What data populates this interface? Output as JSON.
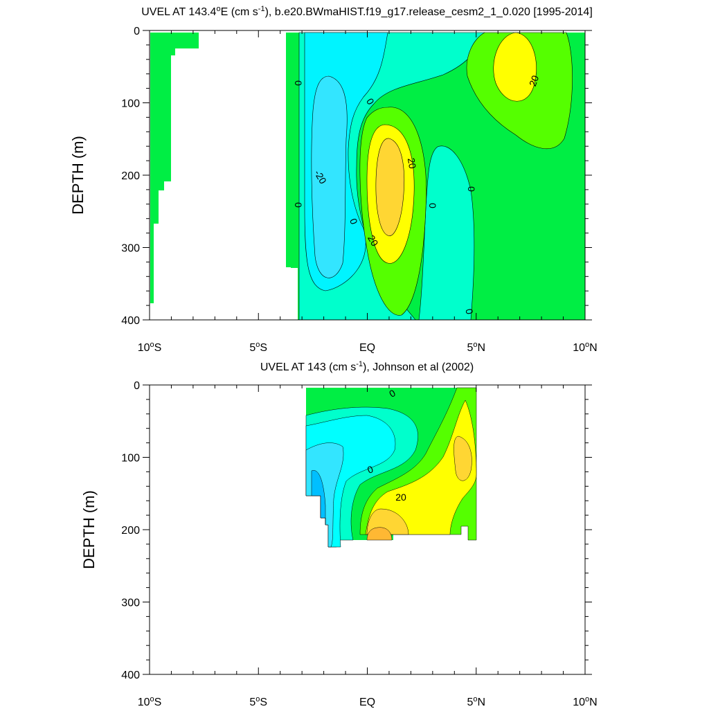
{
  "chart_data": [
    {
      "type": "contour",
      "title_main": "UVEL AT 143.4",
      "title_deg": "o",
      "title_mid": "E (cm s",
      "title_sup": "-1",
      "title_end": "), b.e20.BWmaHIST.f19_g17.release_cesm2_1_0.020 [1995-2014]",
      "ylabel": "DEPTH (m)",
      "xlabel": "",
      "xlim": [
        -10,
        10
      ],
      "ylim": [
        400,
        0
      ],
      "x_ticks": [
        {
          "value": -10,
          "num": "10",
          "deg": "o",
          "hemi": "S"
        },
        {
          "value": -5,
          "num": "5",
          "deg": "o",
          "hemi": "S"
        },
        {
          "value": 0,
          "num": "EQ",
          "deg": "",
          "hemi": ""
        },
        {
          "value": 5,
          "num": "5",
          "deg": "o",
          "hemi": "N"
        },
        {
          "value": 10,
          "num": "10",
          "deg": "o",
          "hemi": "N"
        }
      ],
      "y_ticks": [
        0,
        100,
        200,
        300,
        400
      ],
      "contour_labels": [
        "0",
        "0",
        "0",
        "0",
        "0",
        "0",
        "-20",
        "20",
        "20",
        "20",
        "0"
      ],
      "colors": {
        "neg20": "#33e5ff",
        "neg10": "#00ffff",
        "zero": "#00ffcc",
        "pos10": "#00ff44",
        "pos20": "#55ff00",
        "pos30": "#ffff00",
        "pos40": "#ffd633",
        "pos50": "#ffb833",
        "neg40": "#00bfff",
        "neg50": "#1ea0ff"
      }
    },
    {
      "type": "contour",
      "title_main": "UVEL AT 143 (cm s",
      "title_sup": "-1",
      "title_end": "), Johnson et al (2002)",
      "ylabel": "DEPTH (m)",
      "xlabel": "",
      "xlim": [
        -10,
        10
      ],
      "ylim": [
        400,
        0
      ],
      "x_ticks": [
        {
          "value": -10,
          "num": "10",
          "deg": "o",
          "hemi": "S"
        },
        {
          "value": -5,
          "num": "5",
          "deg": "o",
          "hemi": "S"
        },
        {
          "value": 0,
          "num": "EQ",
          "deg": "",
          "hemi": ""
        },
        {
          "value": 5,
          "num": "5",
          "deg": "o",
          "hemi": "N"
        },
        {
          "value": 10,
          "num": "10",
          "deg": "o",
          "hemi": "N"
        }
      ],
      "y_ticks": [
        0,
        100,
        200,
        300,
        400
      ],
      "contour_labels": [
        "0",
        "0",
        "20"
      ]
    }
  ]
}
